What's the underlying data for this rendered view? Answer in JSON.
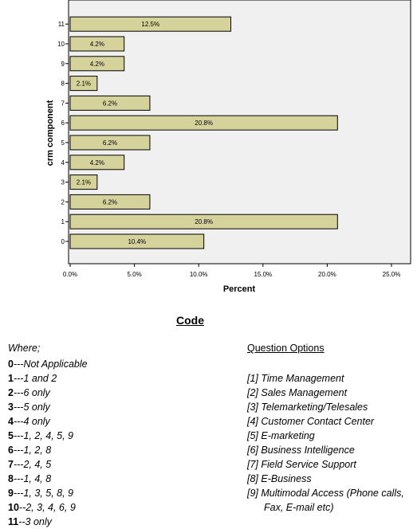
{
  "chart_data": {
    "type": "bar",
    "orientation": "horizontal",
    "categories": [
      "0",
      "1",
      "2",
      "3",
      "4",
      "5",
      "6",
      "7",
      "8",
      "9",
      "10",
      "11"
    ],
    "values": [
      10.4,
      20.8,
      6.2,
      2.1,
      4.2,
      6.2,
      20.8,
      6.2,
      2.1,
      4.2,
      4.2,
      12.5
    ],
    "data_labels": [
      "10.4%",
      "20.8%",
      "6.2%",
      "2.1%",
      "4.2%",
      "6.2%",
      "20.8%",
      "6.2%",
      "2.1%",
      "4.2%",
      "4.2%",
      "12.5%"
    ],
    "xlabel": "Percent",
    "ylabel": "crm component",
    "xlim": [
      0,
      25
    ],
    "xticks": [
      "0.0%",
      "5.0%",
      "10.0%",
      "15.0%",
      "20.0%",
      "25.0%"
    ],
    "grid": false,
    "colors": {
      "bar": "#d6d29c",
      "bar_stroke": "#000000",
      "plot_bg": "#f0f0f0"
    }
  },
  "legend_block": {
    "title": "Code",
    "where_label": "Where;",
    "codes": [
      {
        "num": "0",
        "text": "---Not Applicable"
      },
      {
        "num": "1",
        "text": "---1 and 2"
      },
      {
        "num": "2",
        "text": "---6 only"
      },
      {
        "num": "3",
        "text": "---5 only"
      },
      {
        "num": "4",
        "text": "---4 only"
      },
      {
        "num": "5",
        "text": "---1, 2, 4, 5, 9"
      },
      {
        "num": "6",
        "text": "---1, 2, 8"
      },
      {
        "num": "7",
        "text": "---2, 4, 5"
      },
      {
        "num": "8",
        "text": "---1, 4, 8"
      },
      {
        "num": "9",
        "text": "---1, 3, 5, 8, 9"
      },
      {
        "num": "10",
        "text": "--2, 3, 4, 6, 9"
      },
      {
        "num": "11",
        "text": "--3 only"
      }
    ],
    "options_title": "Question Options",
    "options": [
      "[1] Time Management",
      "[2] Sales Management",
      "[3] Telemarketing/Telesales",
      "[4] Customer Contact Center",
      "[5] E-marketing",
      "[6] Business Intelligence",
      "[7] Field Service Support",
      "[8] E-Business",
      "[9] Multimodal Access (Phone calls, Fax, E-mail etc)"
    ]
  }
}
